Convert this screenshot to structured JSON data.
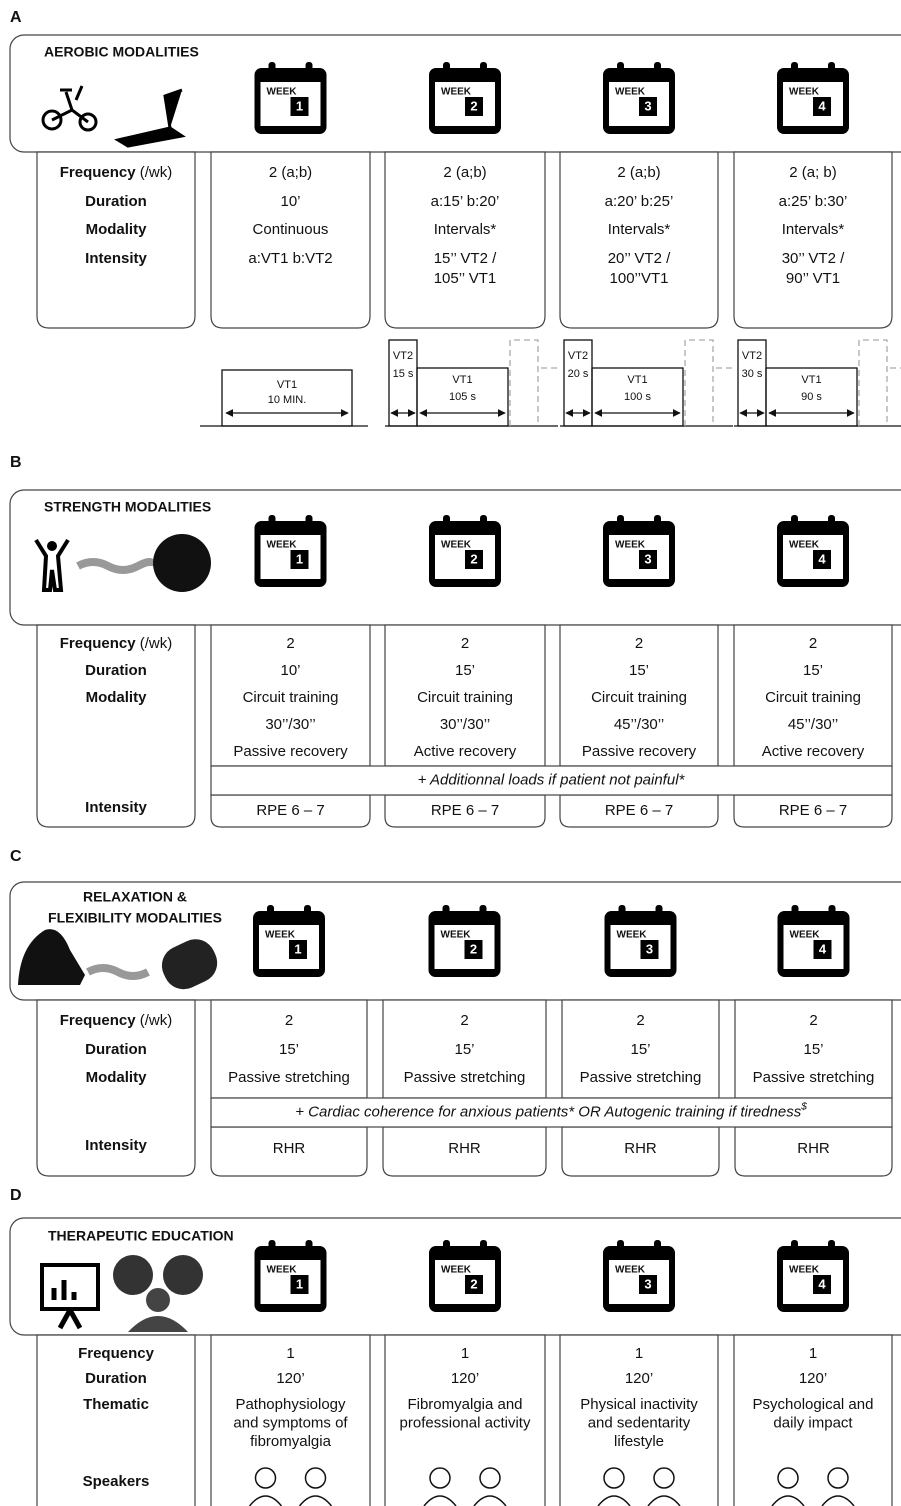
{
  "panels": [
    {
      "letter": "A",
      "title": [
        "AEROBIC MODALITIES"
      ],
      "week_label": "WEEK",
      "weeks": [
        "1",
        "2",
        "3",
        "4"
      ],
      "row_labels": [
        {
          "text": "Frequency",
          "unit": "(/wk)"
        },
        {
          "text": "Duration"
        },
        {
          "text": "Modality"
        },
        {
          "text": "Intensity"
        }
      ],
      "columns": [
        [
          [
            "2 (a;b)"
          ],
          [
            "10’"
          ],
          [
            "Continuous"
          ],
          [
            "a:VT1  b:VT2"
          ]
        ],
        [
          [
            "2 (a;b)"
          ],
          [
            "a:15’  b:20’"
          ],
          [
            "Intervals*"
          ],
          [
            "15’’ VT2 /",
            "105’’ VT1"
          ]
        ],
        [
          [
            "2 (a;b)"
          ],
          [
            "a:20’  b:25’"
          ],
          [
            "Intervals*"
          ],
          [
            "20’’ VT2 /",
            "100’’VT1"
          ]
        ],
        [
          [
            "2 (a; b)"
          ],
          [
            "a:25’  b:30’"
          ],
          [
            "Intervals*"
          ],
          [
            "30’’ VT2 /",
            "90’’ VT1"
          ]
        ]
      ],
      "diagrams": [
        {
          "low": [
            "VT1",
            "10 MIN."
          ]
        },
        {
          "high": [
            "VT2",
            "15 s"
          ],
          "low": [
            "VT1",
            "105 s"
          ]
        },
        {
          "high": [
            "VT2",
            "20 s"
          ],
          "low": [
            "VT1",
            "100 s"
          ]
        },
        {
          "high": [
            "VT2",
            "30 s"
          ],
          "low": [
            "VT1",
            "90 s"
          ]
        }
      ]
    },
    {
      "letter": "B",
      "title": [
        "STRENGTH MODALITIES"
      ],
      "week_label": "WEEK",
      "weeks": [
        "1",
        "2",
        "3",
        "4"
      ],
      "row_labels": [
        {
          "text": "Frequency",
          "unit": "(/wk)"
        },
        {
          "text": "Duration"
        },
        {
          "text": "Modality"
        },
        {
          "text": "Intensity"
        }
      ],
      "columns": [
        [
          [
            "2"
          ],
          [
            "10’"
          ],
          [
            "Circuit training",
            "30’’/30’’",
            "Passive recovery"
          ]
        ],
        [
          [
            "2"
          ],
          [
            "15’"
          ],
          [
            "Circuit training",
            "30’’/30’’",
            "Active recovery"
          ]
        ],
        [
          [
            "2"
          ],
          [
            "15’"
          ],
          [
            "Circuit training",
            "45’’/30’’",
            "Passive recovery"
          ]
        ],
        [
          [
            "2"
          ],
          [
            "15’"
          ],
          [
            "Circuit training",
            "45’’/30’’",
            "Active recovery"
          ]
        ]
      ],
      "note": {
        "text": "+ Additionnal loads if patient not painful*"
      },
      "intensity": [
        "RPE 6 – 7",
        "RPE 6 – 7",
        "RPE 6 – 7",
        "RPE 6 – 7"
      ]
    },
    {
      "letter": "C",
      "title": [
        "RELAXATION &",
        "FLEXIBILITY MODALITIES"
      ],
      "week_label": "WEEK",
      "weeks": [
        "1",
        "2",
        "3",
        "4"
      ],
      "row_labels": [
        {
          "text": "Frequency",
          "unit": "(/wk)"
        },
        {
          "text": "Duration"
        },
        {
          "text": "Modality"
        },
        {
          "text": "Intensity"
        }
      ],
      "columns": [
        [
          [
            "2"
          ],
          [
            "15’"
          ],
          [
            "Passive stretching"
          ]
        ],
        [
          [
            "2"
          ],
          [
            "15’"
          ],
          [
            "Passive stretching"
          ]
        ],
        [
          [
            "2"
          ],
          [
            "15’"
          ],
          [
            "Passive stretching"
          ]
        ],
        [
          [
            "2"
          ],
          [
            "15’"
          ],
          [
            "Passive stretching"
          ]
        ]
      ],
      "note": {
        "text": "+ Cardiac coherence for anxious patients* OR Autogenic training if tiredness",
        "sup": "$"
      },
      "intensity": [
        "RHR",
        "RHR",
        "RHR",
        "RHR"
      ]
    },
    {
      "letter": "D",
      "title": [
        "THERAPEUTIC EDUCATION"
      ],
      "week_label": "WEEK",
      "weeks": [
        "1",
        "2",
        "3",
        "4"
      ],
      "row_labels": [
        {
          "text": "Frequency"
        },
        {
          "text": "Duration"
        },
        {
          "text": "Thematic"
        },
        {
          "text": "Speakers"
        }
      ],
      "columns": [
        [
          [
            "1"
          ],
          [
            "120’"
          ],
          [
            "Pathophysiology",
            "and symptoms of",
            "fibromyalgia"
          ]
        ],
        [
          [
            "1"
          ],
          [
            "120’"
          ],
          [
            "Fibromyalgia and",
            "professional activity"
          ]
        ],
        [
          [
            "1"
          ],
          [
            "120’"
          ],
          [
            "Physical inactivity",
            "and sedentarity",
            "lifestyle"
          ]
        ],
        [
          [
            "1"
          ],
          [
            "120’"
          ],
          [
            "Psychological and",
            "daily impact"
          ]
        ]
      ]
    }
  ]
}
